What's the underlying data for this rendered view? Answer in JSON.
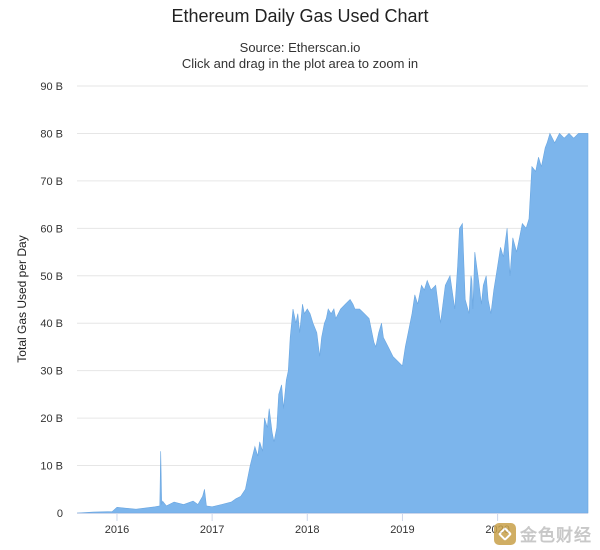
{
  "chart_data": {
    "type": "area",
    "title": "Ethereum Daily Gas Used Chart",
    "subtitle_lines": [
      "Source: Etherscan.io",
      "Click and drag in the plot area to zoom in"
    ],
    "xlabel": "",
    "ylabel": "Total Gas Used per Day",
    "ylim": [
      0,
      90
    ],
    "yticks": [
      0,
      10,
      20,
      30,
      40,
      50,
      60,
      70,
      80,
      90
    ],
    "ytick_labels": [
      "0",
      "10 B",
      "20 B",
      "30 B",
      "40 B",
      "50 B",
      "60 B",
      "70 B",
      "80 B",
      "90 B"
    ],
    "xlim": [
      2015.58,
      2020.95
    ],
    "xticks": [
      2016,
      2017,
      2018,
      2019,
      2020
    ],
    "xtick_labels": [
      "2016",
      "2017",
      "2018",
      "2019",
      "2020"
    ],
    "grid": true,
    "color": "#7cb5ec",
    "series": [
      {
        "x": [
          2015.58,
          2015.75,
          2015.95,
          2016.0,
          2016.2,
          2016.4,
          2016.45,
          2016.46,
          2016.47,
          2016.48,
          2016.52,
          2016.6,
          2016.7,
          2016.8,
          2016.85,
          2016.9,
          2016.92,
          2016.94,
          2017.0,
          2017.1,
          2017.2,
          2017.25,
          2017.3,
          2017.35,
          2017.38,
          2017.4,
          2017.45,
          2017.48,
          2017.5,
          2017.53,
          2017.55,
          2017.58,
          2017.6,
          2017.63,
          2017.65,
          2017.68,
          2017.7,
          2017.73,
          2017.75,
          2017.78,
          2017.8,
          2017.82,
          2017.85,
          2017.88,
          2017.9,
          2017.92,
          2017.95,
          2017.97,
          2018.0,
          2018.03,
          2018.06,
          2018.1,
          2018.13,
          2018.15,
          2018.18,
          2018.2,
          2018.22,
          2018.25,
          2018.28,
          2018.3,
          2018.35,
          2018.4,
          2018.45,
          2018.48,
          2018.5,
          2018.55,
          2018.6,
          2018.65,
          2018.7,
          2018.72,
          2018.75,
          2018.78,
          2018.8,
          2018.85,
          2018.9,
          2018.95,
          2019.0,
          2019.03,
          2019.06,
          2019.1,
          2019.13,
          2019.16,
          2019.2,
          2019.23,
          2019.26,
          2019.3,
          2019.35,
          2019.4,
          2019.45,
          2019.5,
          2019.55,
          2019.58,
          2019.6,
          2019.63,
          2019.66,
          2019.7,
          2019.72,
          2019.73,
          2019.74,
          2019.76,
          2019.8,
          2019.83,
          2019.85,
          2019.88,
          2019.9,
          2019.93,
          2019.96,
          2020.0,
          2020.03,
          2020.06,
          2020.1,
          2020.13,
          2020.16,
          2020.2,
          2020.23,
          2020.26,
          2020.3,
          2020.33,
          2020.36,
          2020.4,
          2020.43,
          2020.46,
          2020.5,
          2020.52,
          2020.55,
          2020.6,
          2020.65,
          2020.7,
          2020.75,
          2020.8,
          2020.85,
          2020.9,
          2020.95
        ],
        "values": [
          0,
          0.2,
          0.3,
          1.2,
          0.8,
          1.3,
          1.5,
          13,
          1.8,
          2.5,
          1.5,
          2.3,
          1.8,
          2.5,
          1.8,
          3.5,
          5,
          1.5,
          1.3,
          1.8,
          2.3,
          3,
          3.5,
          5,
          8,
          10,
          14,
          12,
          15,
          13,
          20,
          18,
          22,
          17,
          15,
          18,
          25,
          27,
          22,
          28,
          30,
          37,
          43,
          40,
          42,
          38,
          44,
          42,
          43,
          42,
          40,
          38,
          33,
          37,
          40,
          41,
          43,
          42,
          43,
          41,
          43,
          44,
          45,
          44,
          43,
          43,
          42,
          41,
          36,
          35,
          38,
          40,
          37,
          35,
          33,
          32,
          31,
          35,
          38,
          42,
          46,
          44,
          48,
          47,
          49,
          47,
          48,
          40,
          48,
          50,
          43,
          52,
          60,
          61,
          45,
          42,
          50,
          49,
          43,
          55,
          49,
          44,
          48,
          50,
          45,
          42,
          47,
          52,
          56,
          54,
          60,
          50,
          58,
          55,
          58,
          61,
          60,
          62,
          73,
          72,
          75,
          73,
          77,
          78,
          80,
          78,
          80,
          79,
          80,
          79,
          80,
          80,
          80
        ]
      }
    ]
  },
  "watermark": {
    "text": "金色财经",
    "icon": "logo-icon"
  }
}
